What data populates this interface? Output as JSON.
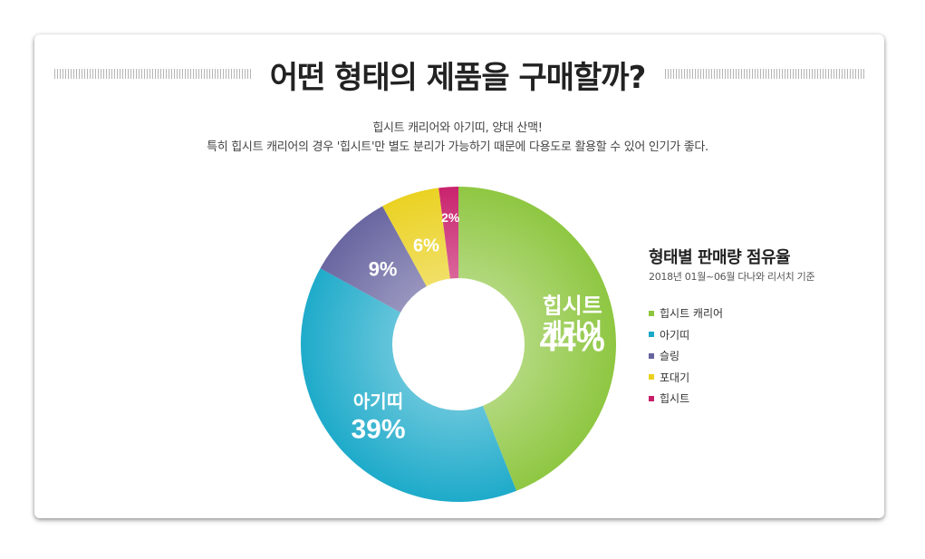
{
  "page": {
    "title": "어떤 형태의 제품을 구매할까?",
    "subtitle_line1": "힙시트 캐리어와 아기띠, 양대 산맥!",
    "subtitle_line2": "특히 힙시트 캐리어의 경우 '힙시트'만 별도 분리가 가능하기 때문에 다용도로 활용할 수 있어 인기가 좋다."
  },
  "legend": {
    "title": "형태별 판매량 점유율",
    "note": "2018년 01월~06월 다나와 리서치 기준",
    "items": [
      {
        "label": "힙시트 캐리어",
        "color": "#8dc63f"
      },
      {
        "label": "아기띠",
        "color": "#1aa9c9"
      },
      {
        "label": "슬링",
        "color": "#66639f"
      },
      {
        "label": "포대기",
        "color": "#ead11f"
      },
      {
        "label": "힙시트",
        "color": "#c81f6b"
      }
    ]
  },
  "chart_data": {
    "type": "pie",
    "donut": true,
    "start": "top",
    "direction": "clockwise",
    "slices": [
      {
        "name": "힙시트 캐리어",
        "value": 44,
        "label_lines": [
          "힙시트",
          "캐리어",
          "44%"
        ],
        "color": "#8dc63f"
      },
      {
        "name": "아기띠",
        "value": 39,
        "label_lines": [
          "아기띠",
          "39%"
        ],
        "color": "#1aa9c9"
      },
      {
        "name": "슬링",
        "value": 9,
        "label_lines": [
          "9%"
        ],
        "color": "#66639f"
      },
      {
        "name": "포대기",
        "value": 6,
        "label_lines": [
          "6%"
        ],
        "color": "#ead11f"
      },
      {
        "name": "힙시트",
        "value": 2,
        "label_lines": [
          "2%"
        ],
        "color": "#c81f6b"
      }
    ]
  }
}
